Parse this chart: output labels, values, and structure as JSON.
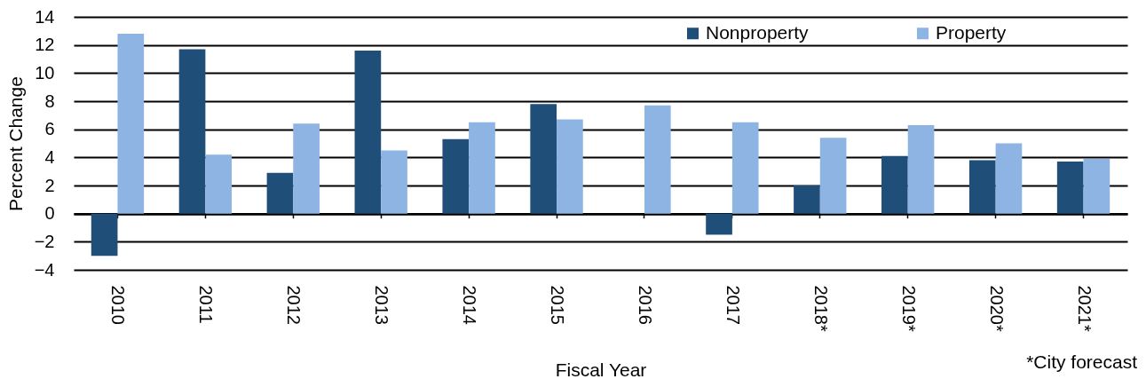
{
  "chart_data": {
    "type": "bar",
    "xlabel": "Fiscal Year",
    "ylabel": "Percent Change",
    "categories": [
      "2010",
      "2011",
      "2012",
      "2013",
      "2014",
      "2015",
      "2016",
      "2017",
      "2018*",
      "2019*",
      "2020*",
      "2021*"
    ],
    "series": [
      {
        "name": "Nonproperty",
        "color": "#1f4e79",
        "values": [
          -3.0,
          11.7,
          2.9,
          11.6,
          5.3,
          7.8,
          null,
          -1.5,
          2.0,
          4.1,
          3.8,
          3.7
        ]
      },
      {
        "name": "Property",
        "color": "#8db4e2",
        "values": [
          12.8,
          4.2,
          6.4,
          4.5,
          6.5,
          6.7,
          7.7,
          6.5,
          5.4,
          6.3,
          5.0,
          3.9
        ]
      }
    ],
    "ylim": [
      -4,
      14
    ],
    "yticks": [
      -4,
      -2,
      0,
      2,
      4,
      6,
      8,
      10,
      12,
      14
    ],
    "grid": "y",
    "legend": "top right",
    "annotations": [
      "*City forecast"
    ]
  }
}
